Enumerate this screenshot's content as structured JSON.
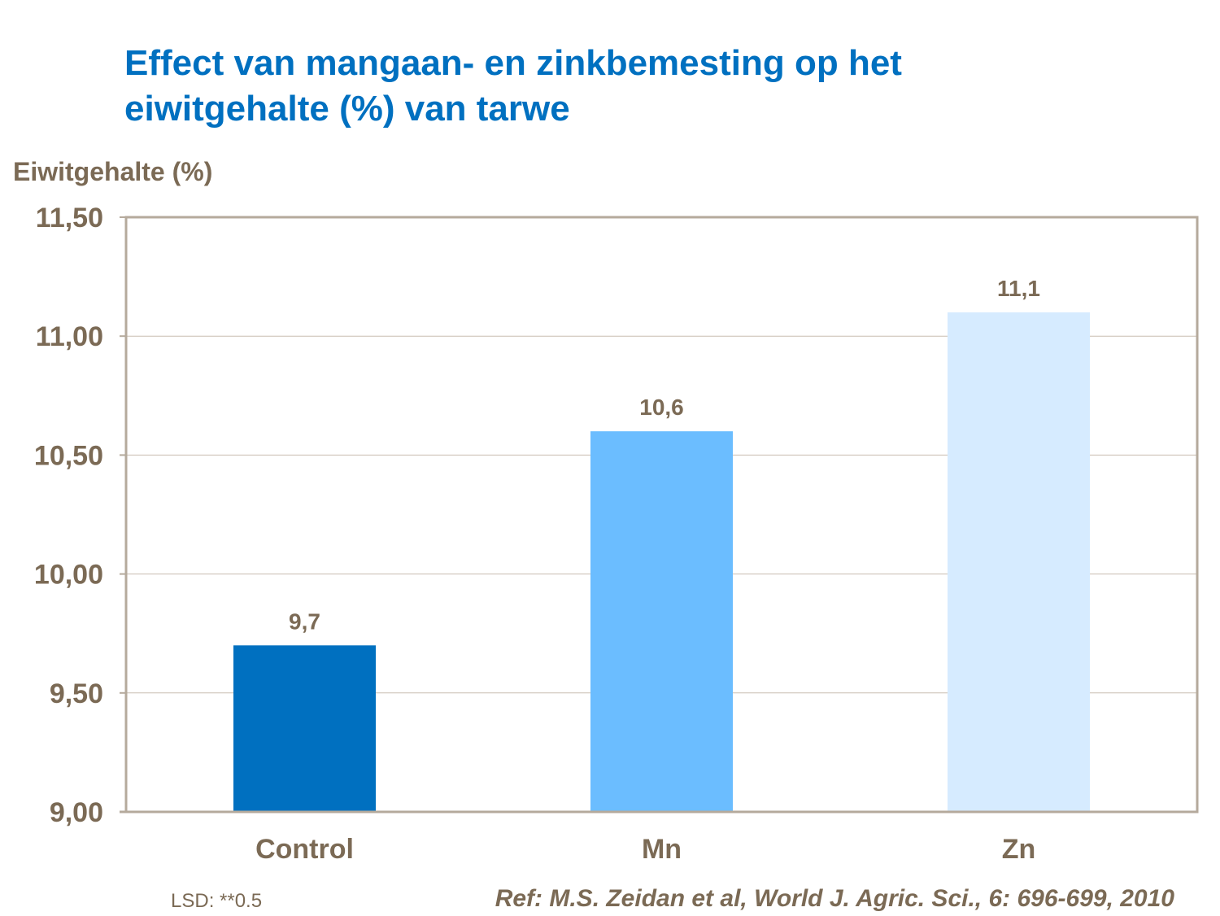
{
  "chart_data": {
    "type": "bar",
    "title": "Effect van mangaan- en zinkbemesting op het eiwitgehalte (%) van tarwe",
    "title_lines": [
      "Effect van mangaan- en zinkbemesting op het",
      "eiwitgehalte (%) van tarwe"
    ],
    "ylabel": "Eiwitgehalte (%)",
    "xlabel": "",
    "categories": [
      "Control",
      "Mn",
      "Zn"
    ],
    "values": [
      9.7,
      10.6,
      11.1
    ],
    "data_labels": [
      "9,7",
      "10,6",
      "11,1"
    ],
    "bar_colors": [
      "#0070c0",
      "#6bbdff",
      "#d6ebff"
    ],
    "ylim": [
      9.0,
      11.5
    ],
    "yticks": [
      9.0,
      9.5,
      10.0,
      10.5,
      11.0,
      11.5
    ],
    "ytick_labels": [
      "9,00",
      "9,50",
      "10,00",
      "10,50",
      "11,00",
      "11,50"
    ],
    "grid": true,
    "legend": "none",
    "annotations": {
      "lsd": "LSD: **0.5",
      "reference": "Ref: M.S. Zeidan et al, World J. Agric. Sci., 6: 696-699, 2010"
    }
  },
  "colors": {
    "title": "#0070c0",
    "text": "#7b6a55",
    "axis": "#b5aa9c",
    "grid": "#c8bdb0"
  }
}
